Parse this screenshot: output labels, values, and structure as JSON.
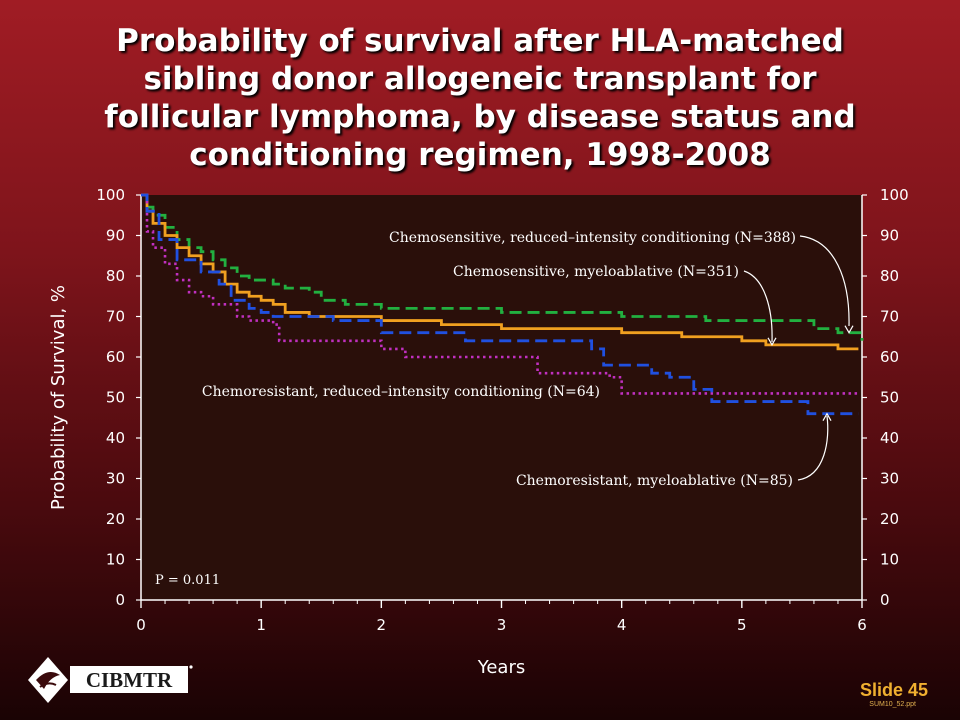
{
  "title_lines": [
    "Probability of survival after HLA-matched",
    "sibling donor allogeneic transplant for",
    "follicular lymphoma, by disease status and",
    "conditioning regimen, 1998-2008"
  ],
  "logo_text": "CIBMTR",
  "slide_label": "Slide 45",
  "slide_ref": "SUM10_52.ppt",
  "chart_data": {
    "type": "line",
    "xlabel": "Years",
    "ylabel": "Probability of Survival, %",
    "xlim": [
      0,
      6
    ],
    "ylim": [
      0,
      100
    ],
    "xticks": [
      0,
      1,
      2,
      3,
      4,
      5,
      6
    ],
    "yticks": [
      0,
      10,
      20,
      30,
      40,
      50,
      60,
      70,
      80,
      90,
      100
    ],
    "grid": false,
    "annotation": "P = 0.011",
    "series": [
      {
        "name": "Chemosensitive, reduced–intensity conditioning (N=388)",
        "color": "#22b040",
        "style": "dashed",
        "x": [
          0,
          0.05,
          0.1,
          0.2,
          0.3,
          0.4,
          0.5,
          0.6,
          0.7,
          0.8,
          0.9,
          1.0,
          1.1,
          1.2,
          1.4,
          1.5,
          1.6,
          1.7,
          1.9,
          2.0,
          2.1,
          2.5,
          3.0,
          3.5,
          3.8,
          4.0,
          4.5,
          4.7,
          5.0,
          5.4,
          5.6,
          5.8,
          5.97,
          6.0
        ],
        "y": [
          100,
          97,
          95,
          92,
          89,
          87,
          86,
          84,
          82,
          80,
          79,
          79,
          78,
          77,
          76,
          74,
          74,
          73,
          73,
          72,
          72,
          72,
          71,
          71,
          71,
          70,
          70,
          69,
          69,
          69,
          67,
          66,
          66,
          64
        ]
      },
      {
        "name": "Chemosensitive, myeloablative (N=351)",
        "color": "#f0a020",
        "style": "solid",
        "x": [
          0,
          0.05,
          0.1,
          0.2,
          0.3,
          0.4,
          0.5,
          0.6,
          0.7,
          0.8,
          0.9,
          1.0,
          1.1,
          1.2,
          1.4,
          1.5,
          1.7,
          2.0,
          2.2,
          2.5,
          2.8,
          3.0,
          3.5,
          3.8,
          4.0,
          4.5,
          5.0,
          5.2,
          5.5,
          5.8,
          5.97
        ],
        "y": [
          100,
          96,
          93,
          90,
          87,
          85,
          83,
          81,
          78,
          76,
          75,
          74,
          73,
          71,
          70,
          70,
          70,
          69,
          69,
          68,
          68,
          67,
          67,
          67,
          66,
          65,
          64,
          63,
          63,
          62,
          62
        ]
      },
      {
        "name": "Chemoresistant, reduced–intensity conditioning (N=64)",
        "color": "#c030c0",
        "style": "dotted",
        "x": [
          0,
          0.05,
          0.1,
          0.2,
          0.3,
          0.4,
          0.5,
          0.6,
          0.8,
          0.9,
          1.0,
          1.1,
          1.15,
          1.3,
          1.6,
          2.0,
          2.2,
          2.5,
          3.0,
          3.3,
          3.5,
          3.9,
          4.0,
          4.5,
          5.0,
          5.5,
          5.97
        ],
        "y": [
          100,
          91,
          87,
          83,
          79,
          76,
          75,
          73,
          70,
          69,
          69,
          68,
          64,
          64,
          64,
          62,
          60,
          60,
          60,
          56,
          56,
          55,
          51,
          51,
          51,
          51,
          51
        ]
      },
      {
        "name": "Chemoresistant, myeloablative (N=85)",
        "color": "#2050e0",
        "style": "dashed",
        "x": [
          0,
          0.05,
          0.15,
          0.3,
          0.5,
          0.65,
          0.75,
          0.9,
          1.0,
          1.1,
          1.6,
          2.0,
          2.7,
          3.0,
          3.5,
          3.75,
          3.85,
          3.95,
          4.25,
          4.4,
          4.6,
          4.75,
          5.0,
          5.5,
          5.55,
          5.97
        ],
        "y": [
          100,
          96,
          89,
          84,
          81,
          78,
          74,
          72,
          71,
          70,
          69,
          66,
          64,
          64,
          64,
          62,
          58,
          58,
          56,
          55,
          52,
          49,
          49,
          49,
          46,
          46
        ]
      }
    ]
  }
}
